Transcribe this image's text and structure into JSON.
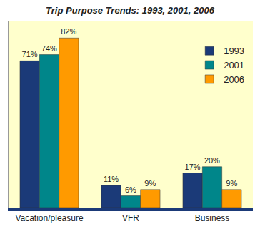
{
  "chart_data": {
    "type": "bar",
    "title": "Trip Purpose Trends: 1993, 2001, 2006",
    "categories": [
      "Vacation/pleasure",
      "VFR",
      "Business"
    ],
    "series": [
      {
        "name": "1993",
        "color": "#1b3a78",
        "values": [
          71,
          11,
          17
        ],
        "value_labels": [
          "71%",
          "11%",
          "17%"
        ]
      },
      {
        "name": "2001",
        "color": "#00868a",
        "values": [
          74,
          6,
          20
        ],
        "value_labels": [
          "74%",
          "6%",
          "20%"
        ]
      },
      {
        "name": "2006",
        "color": "#ff9a00",
        "values": [
          82,
          9,
          9
        ],
        "value_labels": [
          "82%",
          "9%",
          "9%"
        ]
      }
    ],
    "ylim": [
      0,
      90
    ],
    "grid": false,
    "legend": "upper right",
    "data_labels": true,
    "tick_labels": "x"
  }
}
